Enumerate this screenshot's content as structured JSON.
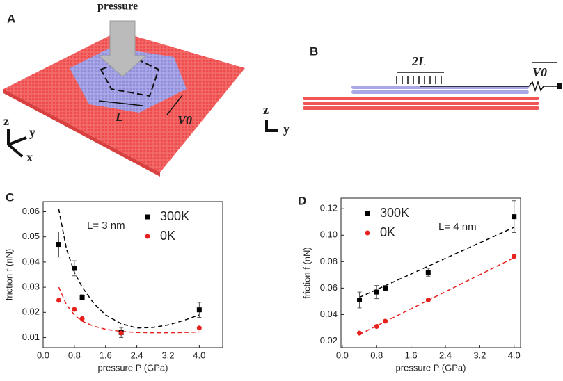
{
  "panels": {
    "A": "A",
    "B": "B",
    "C": "C",
    "D": "D"
  },
  "illustration_a": {
    "pressure": "pressure",
    "length": "L",
    "velocity": "V0",
    "axis_z": "z",
    "axis_y": "y",
    "axis_x": "x"
  },
  "illustration_b": {
    "length": "2L",
    "velocity": "V0",
    "axis_z": "z",
    "axis_y": "y"
  },
  "chart_data": [
    {
      "type": "scatter",
      "xlabel": "pressure P (GPa)",
      "ylabel": "friction f (nN)",
      "annotation": "L= 3 nm",
      "xlim": [
        0,
        4.6
      ],
      "ylim": [
        0.006,
        0.064
      ],
      "xticks": [
        {
          "value": 0,
          "label": "0.0"
        },
        0.8,
        1.6,
        2.4,
        3.2,
        {
          "value": 4,
          "label": "4.0"
        }
      ],
      "yticks": [
        0.01,
        0.02,
        0.03,
        0.04,
        0.05,
        0.06
      ],
      "legend": "upper right",
      "series": [
        {
          "name": "300K",
          "color": "#000000",
          "marker": "square",
          "x": [
            0.4,
            0.8,
            1.0,
            2.0,
            4.0
          ],
          "values": [
            0.047,
            0.0375,
            0.026,
            0.012,
            0.021
          ],
          "errors": [
            0.005,
            0.003,
            0.001,
            0.002,
            0.003
          ]
        },
        {
          "name": "0K",
          "color": "#e8201e",
          "marker": "circle",
          "x": [
            0.4,
            0.8,
            1.0,
            2.0,
            4.0
          ],
          "values": [
            0.0248,
            0.0212,
            0.0175,
            0.0118,
            0.0138
          ]
        }
      ],
      "fits": [
        {
          "color": "#000000",
          "x": [
            0.4,
            0.6,
            0.8,
            1.0,
            1.3,
            1.6,
            2.0,
            2.4,
            2.8,
            3.2,
            3.6,
            4.0
          ],
          "values": [
            0.061,
            0.045,
            0.036,
            0.03,
            0.0235,
            0.019,
            0.0155,
            0.0138,
            0.014,
            0.015,
            0.0168,
            0.019
          ]
        },
        {
          "color": "#e8201e",
          "x": [
            0.4,
            0.6,
            0.8,
            1.0,
            1.3,
            1.6,
            2.0,
            2.4,
            2.8,
            3.2,
            3.6,
            4.0
          ],
          "values": [
            0.03,
            0.023,
            0.019,
            0.0165,
            0.0145,
            0.0133,
            0.0124,
            0.012,
            0.0119,
            0.0119,
            0.012,
            0.0122
          ]
        }
      ]
    },
    {
      "type": "scatter",
      "xlabel": "pressure P (GPa)",
      "ylabel": "friction f (nN)",
      "annotation": "L= 4 nm",
      "xlim": [
        -0.03,
        4.15
      ],
      "ylim": [
        0.015,
        0.128
      ],
      "xticks": [
        {
          "value": 0,
          "label": "0.0"
        },
        0.8,
        1.6,
        2.4,
        3.2,
        {
          "value": 4,
          "label": "4.0"
        }
      ],
      "yticks": [
        0.02,
        0.04,
        0.06,
        0.08,
        {
          "value": 0.1,
          "label": "0.10"
        },
        0.12
      ],
      "legend": "upper left",
      "series": [
        {
          "name": "300K",
          "color": "#000000",
          "marker": "square",
          "x": [
            0.4,
            0.8,
            1.0,
            2.0,
            4.0
          ],
          "values": [
            0.051,
            0.057,
            0.06,
            0.072,
            0.114
          ],
          "errors": [
            0.006,
            0.005,
            0.002,
            0.003,
            0.012
          ]
        },
        {
          "name": "0K",
          "color": "#e8201e",
          "marker": "circle",
          "x": [
            0.4,
            0.8,
            1.0,
            2.0,
            4.0
          ],
          "values": [
            0.026,
            0.031,
            0.035,
            0.051,
            0.084
          ]
        }
      ],
      "fits": [
        {
          "color": "#000000",
          "x": [
            0.4,
            4.0
          ],
          "values": [
            0.053,
            0.106
          ]
        },
        {
          "color": "#e8201e",
          "x": [
            0.4,
            4.0
          ],
          "values": [
            0.025,
            0.083
          ]
        }
      ]
    }
  ]
}
